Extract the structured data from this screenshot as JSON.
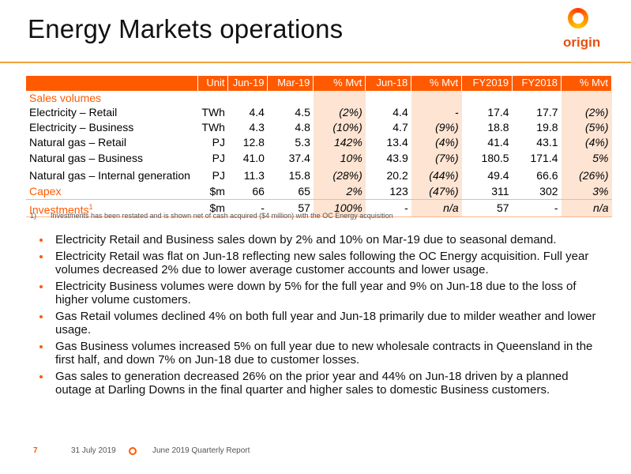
{
  "title": "Energy Markets operations",
  "logo_text": "origin",
  "table": {
    "headers": [
      "Unit",
      "Jun-19",
      "Mar-19",
      "% Mvt",
      "Jun-18",
      "% Mvt",
      "FY2019",
      "FY2018",
      "% Mvt"
    ],
    "section_label": "Sales volumes",
    "rows": [
      {
        "label": "Electricity – Retail",
        "unit": "TWh",
        "jun19": "4.4",
        "mar19": "4.5",
        "mvt1": "(2%)",
        "jun18": "4.4",
        "mvt2": "-",
        "fy19": "17.4",
        "fy18": "17.7",
        "mvt3": "(2%)"
      },
      {
        "label": "Electricity – Business",
        "unit": "TWh",
        "jun19": "4.3",
        "mar19": "4.8",
        "mvt1": "(10%)",
        "jun18": "4.7",
        "mvt2": "(9%)",
        "fy19": "18.8",
        "fy18": "19.8",
        "mvt3": "(5%)"
      },
      {
        "label": "Natural gas – Retail",
        "unit": "PJ",
        "jun19": "12.8",
        "mar19": "5.3",
        "mvt1": "142%",
        "jun18": "13.4",
        "mvt2": "(4%)",
        "fy19": "41.4",
        "fy18": "43.1",
        "mvt3": "(4%)"
      },
      {
        "label": "Natural gas – Business",
        "unit": "PJ",
        "jun19": "41.0",
        "mar19": "37.4",
        "mvt1": "10%",
        "jun18": "43.9",
        "mvt2": "(7%)",
        "fy19": "180.5",
        "fy18": "171.4",
        "mvt3": "5%"
      },
      {
        "label": "Natural gas – Internal generation",
        "unit": "PJ",
        "jun19": "11.3",
        "mar19": "15.8",
        "mvt1": "(28%)",
        "jun18": "20.2",
        "mvt2": "(44%)",
        "fy19": "49.4",
        "fy18": "66.6",
        "mvt3": "(26%)"
      }
    ],
    "capex": {
      "label": "Capex",
      "unit": "$m",
      "jun19": "66",
      "mar19": "65",
      "mvt1": "2%",
      "jun18": "123",
      "mvt2": "(47%)",
      "fy19": "311",
      "fy18": "302",
      "mvt3": "3%"
    },
    "investments": {
      "label": "Investments",
      "sup": "1",
      "unit": "$m",
      "jun19": "-",
      "mar19": "57",
      "mvt1": "100%",
      "jun18": "-",
      "mvt2": "n/a",
      "fy19": "57",
      "fy18": "-",
      "mvt3": "n/a"
    }
  },
  "footnote": {
    "num": "1)",
    "text": "Investments has been restated and is shown net of cash acquired ($4 million) with the OC Energy acquisition"
  },
  "bullets": [
    "Electricity Retail and Business sales down by 2% and 10% on Mar-19 due to seasonal demand.",
    "Electricity Retail was flat on Jun-18 reflecting new sales following the OC Energy acquisition. Full year volumes decreased 2% due to lower average customer accounts and lower usage.",
    "Electricity Business volumes were down by 5% for the full year and 9% on Jun-18 due to the loss of higher volume customers.",
    "Gas Retail volumes declined 4% on both full year and Jun-18 primarily due to milder weather and lower usage.",
    "Gas Business volumes increased 5% on full year due to new wholesale contracts in Queensland in the first half, and down 7% on Jun-18 due to customer losses.",
    "Gas sales to generation decreased 26% on the prior year and 44% on Jun-18 driven by a planned outage at Darling Downs in the final quarter and higher sales to domestic Business customers."
  ],
  "footer": {
    "page": "7",
    "date": "31 July 2019",
    "report": "June 2019 Quarterly Report"
  },
  "colors": {
    "accent": "#ff5a00",
    "highlight": "#fde4d3",
    "rule": "#f0a23a"
  }
}
